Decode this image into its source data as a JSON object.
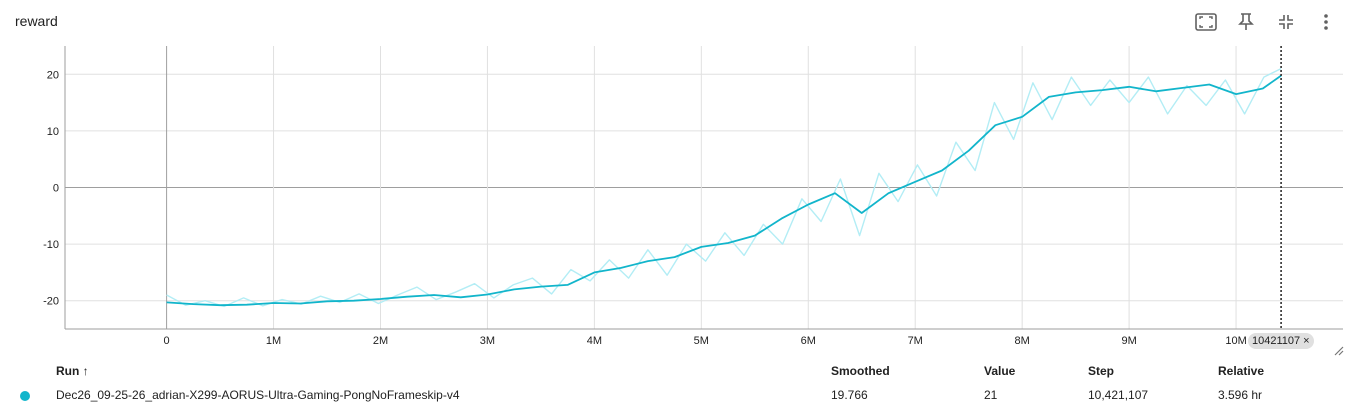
{
  "card": {
    "title": "reward"
  },
  "toolbar": [
    {
      "name": "fit-domain-icon"
    },
    {
      "name": "pin-icon"
    },
    {
      "name": "collapse-icon"
    },
    {
      "name": "more-vert-icon"
    }
  ],
  "colors": {
    "smoothed": "#12b5cb",
    "raw": "#b3edf5",
    "grid": "#e0e0e0",
    "zero": "#9e9e9e"
  },
  "cursor": {
    "step_label": "10421107",
    "close_glyph": "×"
  },
  "table": {
    "headers": {
      "run": "Run",
      "run_sort_glyph": "↑",
      "smoothed": "Smoothed",
      "value": "Value",
      "step": "Step",
      "relative": "Relative"
    },
    "row": {
      "run": "Dec26_09-25-26_adrian-X299-AORUS-Ultra-Gaming-PongNoFrameskip-v4",
      "smoothed": "19.766",
      "value": "21",
      "step": "10,421,107",
      "relative": "3.596 hr"
    }
  },
  "chart_data": {
    "type": "line",
    "title": "reward",
    "xlabel": "",
    "ylabel": "",
    "xlim": [
      -950000,
      11000000
    ],
    "ylim": [
      -25,
      25
    ],
    "x_ticks": [
      0,
      1000000,
      2000000,
      3000000,
      4000000,
      5000000,
      6000000,
      7000000,
      8000000,
      9000000,
      10000000
    ],
    "x_tick_labels": [
      "0",
      "1M",
      "2M",
      "3M",
      "4M",
      "5M",
      "6M",
      "7M",
      "8M",
      "9M",
      "10M"
    ],
    "y_ticks": [
      -20,
      -10,
      0,
      10,
      20
    ],
    "y_tick_labels": [
      "-20",
      "-10",
      "0",
      "10",
      "20"
    ],
    "cursor_step": 10421107,
    "series": [
      {
        "role": "smoothed",
        "x": [
          0,
          250000,
          500000,
          750000,
          1000000,
          1250000,
          1500000,
          1750000,
          2000000,
          2250000,
          2500000,
          2750000,
          3000000,
          3250000,
          3500000,
          3750000,
          4000000,
          4250000,
          4500000,
          4750000,
          5000000,
          5250000,
          5500000,
          5750000,
          6000000,
          6250000,
          6500000,
          6750000,
          7000000,
          7250000,
          7500000,
          7750000,
          8000000,
          8250000,
          8500000,
          8750000,
          9000000,
          9250000,
          9500000,
          9750000,
          10000000,
          10250000,
          10421107
        ],
        "y": [
          -20.3,
          -20.6,
          -20.8,
          -20.7,
          -20.4,
          -20.5,
          -20.1,
          -20.0,
          -19.7,
          -19.3,
          -19.0,
          -19.4,
          -18.9,
          -18.0,
          -17.5,
          -17.2,
          -15.0,
          -14.2,
          -13.0,
          -12.3,
          -10.5,
          -9.8,
          -8.5,
          -5.5,
          -3.0,
          -1.0,
          -4.5,
          -1.0,
          1.0,
          3.0,
          6.5,
          11.0,
          12.5,
          16.0,
          16.8,
          17.2,
          17.8,
          17.0,
          17.6,
          18.2,
          16.5,
          17.5,
          19.766
        ]
      },
      {
        "role": "raw",
        "x": [
          0,
          180000,
          360000,
          540000,
          720000,
          900000,
          1080000,
          1260000,
          1440000,
          1620000,
          1800000,
          1980000,
          2160000,
          2340000,
          2520000,
          2700000,
          2880000,
          3060000,
          3240000,
          3420000,
          3600000,
          3780000,
          3960000,
          4140000,
          4320000,
          4500000,
          4680000,
          4860000,
          5040000,
          5220000,
          5400000,
          5580000,
          5760000,
          5940000,
          6120000,
          6300000,
          6480000,
          6660000,
          6840000,
          7020000,
          7200000,
          7380000,
          7560000,
          7740000,
          7920000,
          8100000,
          8280000,
          8460000,
          8640000,
          8820000,
          9000000,
          9180000,
          9360000,
          9540000,
          9720000,
          9900000,
          10080000,
          10260000,
          10421107
        ],
        "y": [
          -19.0,
          -20.8,
          -20.0,
          -21.0,
          -19.5,
          -20.9,
          -19.8,
          -20.6,
          -19.2,
          -20.3,
          -18.8,
          -20.5,
          -19.0,
          -17.6,
          -19.8,
          -18.5,
          -17.0,
          -19.5,
          -17.2,
          -16.0,
          -18.8,
          -14.5,
          -16.5,
          -12.8,
          -16.0,
          -11.0,
          -15.5,
          -10.0,
          -13.0,
          -8.0,
          -12.0,
          -6.5,
          -10.0,
          -2.0,
          -6.0,
          1.5,
          -8.5,
          2.5,
          -2.5,
          4.0,
          -1.5,
          8.0,
          3.0,
          15.0,
          8.5,
          18.5,
          12.0,
          19.5,
          14.5,
          19.0,
          15.0,
          19.5,
          13.0,
          18.0,
          14.5,
          19.0,
          13.0,
          19.5,
          21.0
        ]
      }
    ]
  }
}
